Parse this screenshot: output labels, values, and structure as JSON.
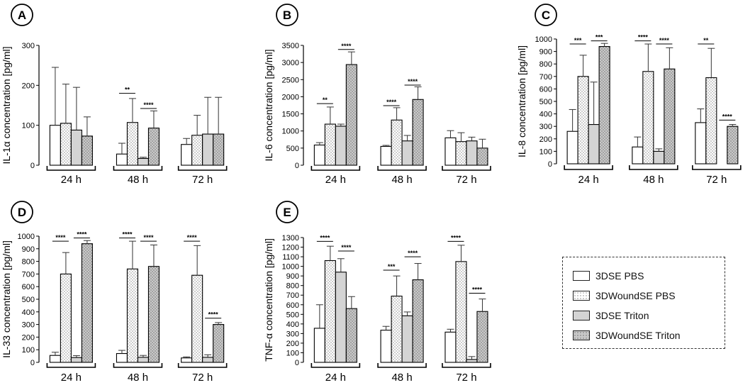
{
  "series_names": [
    "3DSE PBS",
    "3DWoundSE PBS",
    "3DSE Triton",
    "3DWoundSE Triton"
  ],
  "styles": [
    {
      "fill": "#ffffff",
      "dotted": false
    },
    {
      "fill": "#ffffff",
      "dotted": true
    },
    {
      "fill": "#d4d4d4",
      "dotted": false
    },
    {
      "fill": "#c9c9c9",
      "dotted": true
    }
  ],
  "chart_data": [
    {
      "panel": "A",
      "type": "bar",
      "ylabel": "IL-1α concentration [pg/ml]",
      "categories": [
        "24 h",
        "48 h",
        "72 h"
      ],
      "yticks": [
        0,
        100,
        200,
        300
      ],
      "ylim": [
        0,
        300
      ],
      "values": [
        [
          100,
          105,
          88,
          73
        ],
        [
          28,
          107,
          17,
          93
        ],
        [
          52,
          75,
          78,
          78
        ]
      ],
      "errors": [
        [
          145,
          98,
          107,
          48
        ],
        [
          27,
          60,
          3,
          43
        ],
        [
          15,
          50,
          92,
          92
        ]
      ],
      "sig": [
        {
          "group": 1,
          "from": 0,
          "to": 1,
          "y": 180,
          "label": "**"
        },
        {
          "group": 1,
          "from": 2,
          "to": 3,
          "y": 142,
          "label": "****"
        }
      ]
    },
    {
      "panel": "B",
      "type": "bar",
      "ylabel": "IL-6 concentration [pg/ml]",
      "categories": [
        "24 h",
        "48 h",
        "72 h"
      ],
      "yticks": [
        0,
        500,
        1000,
        1500,
        2000,
        2500,
        3000,
        3500
      ],
      "ylim": [
        0,
        3500
      ],
      "values": [
        [
          590,
          1200,
          1140,
          2940
        ],
        [
          550,
          1320,
          710,
          1920
        ],
        [
          800,
          690,
          710,
          500
        ]
      ],
      "errors": [
        [
          70,
          500,
          60,
          370
        ],
        [
          30,
          360,
          160,
          370
        ],
        [
          210,
          260,
          110,
          260
        ]
      ],
      "sig": [
        {
          "group": 0,
          "from": 0,
          "to": 1,
          "y": 1800,
          "label": "**"
        },
        {
          "group": 0,
          "from": 2,
          "to": 3,
          "y": 3380,
          "label": "****"
        },
        {
          "group": 1,
          "from": 0,
          "to": 1,
          "y": 1740,
          "label": "****"
        },
        {
          "group": 1,
          "from": 2,
          "to": 3,
          "y": 2340,
          "label": "****"
        }
      ]
    },
    {
      "panel": "C",
      "type": "bar",
      "ylabel": "IL-8 concentration [pg/ml]",
      "categories": [
        "24 h",
        "48 h",
        "72 h"
      ],
      "yticks": [
        0,
        100,
        200,
        300,
        400,
        500,
        600,
        700,
        800,
        900,
        1000
      ],
      "ylim": [
        0,
        1000
      ],
      "values": [
        [
          260,
          700,
          315,
          940
        ],
        [
          135,
          740,
          100,
          760
        ],
        [
          330,
          690,
          null,
          300
        ]
      ],
      "errors": [
        [
          175,
          170,
          340,
          25
        ],
        [
          80,
          220,
          20,
          170
        ],
        [
          110,
          235,
          null,
          15
        ]
      ],
      "sig": [
        {
          "group": 0,
          "from": 0,
          "to": 1,
          "y": 960,
          "label": "***"
        },
        {
          "group": 0,
          "from": 2,
          "to": 3,
          "y": 985,
          "label": "***"
        },
        {
          "group": 1,
          "from": 0,
          "to": 1,
          "y": 985,
          "label": "****"
        },
        {
          "group": 1,
          "from": 2,
          "to": 3,
          "y": 960,
          "label": "****"
        },
        {
          "group": 2,
          "from": 0,
          "to": 1,
          "y": 960,
          "label": "**"
        },
        {
          "group": 2,
          "from": 2,
          "to": 3,
          "y": 350,
          "label": "****"
        }
      ]
    },
    {
      "panel": "D",
      "type": "bar",
      "ylabel": "IL-33 concentration [pg/ml]",
      "categories": [
        "24 h",
        "48 h",
        "72 h"
      ],
      "yticks": [
        0,
        100,
        200,
        300,
        400,
        500,
        600,
        700,
        800,
        900,
        1000
      ],
      "ylim": [
        0,
        1000
      ],
      "values": [
        [
          55,
          700,
          38,
          940
        ],
        [
          70,
          740,
          40,
          760
        ],
        [
          35,
          690,
          40,
          300
        ]
      ],
      "errors": [
        [
          25,
          170,
          15,
          25
        ],
        [
          25,
          220,
          15,
          170
        ],
        [
          8,
          235,
          20,
          15
        ]
      ],
      "sig": [
        {
          "group": 0,
          "from": 0,
          "to": 1,
          "y": 960,
          "label": "****"
        },
        {
          "group": 0,
          "from": 2,
          "to": 3,
          "y": 985,
          "label": "****"
        },
        {
          "group": 1,
          "from": 0,
          "to": 1,
          "y": 985,
          "label": "****"
        },
        {
          "group": 1,
          "from": 2,
          "to": 3,
          "y": 960,
          "label": "****"
        },
        {
          "group": 2,
          "from": 0,
          "to": 1,
          "y": 960,
          "label": "****"
        },
        {
          "group": 2,
          "from": 2,
          "to": 3,
          "y": 350,
          "label": "****"
        }
      ]
    },
    {
      "panel": "E",
      "type": "bar",
      "ylabel": "TNF-α concentration [pg/ml]",
      "categories": [
        "24 h",
        "48 h",
        "72 h"
      ],
      "yticks": [
        0,
        100,
        200,
        300,
        400,
        500,
        600,
        700,
        800,
        900,
        1000,
        1100,
        1200,
        1300
      ],
      "ylim": [
        0,
        1300
      ],
      "values": [
        [
          355,
          1060,
          940,
          560
        ],
        [
          335,
          690,
          485,
          860
        ],
        [
          315,
          1050,
          30,
          530
        ]
      ],
      "errors": [
        [
          245,
          150,
          140,
          125
        ],
        [
          40,
          210,
          40,
          170
        ],
        [
          30,
          170,
          30,
          130
        ]
      ],
      "sig": [
        {
          "group": 0,
          "from": 0,
          "to": 1,
          "y": 1260,
          "label": "****"
        },
        {
          "group": 0,
          "from": 2,
          "to": 3,
          "y": 1160,
          "label": "****"
        },
        {
          "group": 1,
          "from": 0,
          "to": 1,
          "y": 960,
          "label": "***"
        },
        {
          "group": 1,
          "from": 2,
          "to": 3,
          "y": 1100,
          "label": "****"
        },
        {
          "group": 2,
          "from": 0,
          "to": 1,
          "y": 1260,
          "label": "****"
        },
        {
          "group": 2,
          "from": 2,
          "to": 3,
          "y": 720,
          "label": "****"
        }
      ]
    }
  ]
}
